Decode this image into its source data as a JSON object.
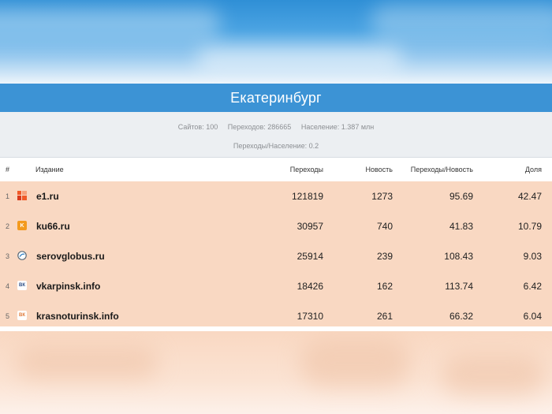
{
  "header": {
    "city": "Екатеринбург"
  },
  "stats": {
    "sites": "Сайтов: 100",
    "transitions": "Переходов: 286665",
    "population": "Население: 1.387 млн",
    "ratio": "Переходы/Население: 0.2"
  },
  "table": {
    "columns": [
      "#",
      "Издание",
      "Переходы",
      "Новость",
      "Переходы/Новость",
      "Доля"
    ],
    "rows": [
      {
        "rank": "1",
        "site": "e1.ru",
        "icon": "e1-icon",
        "transitions": "121819",
        "news": "1273",
        "per_news": "95.69",
        "share": "42.47"
      },
      {
        "rank": "2",
        "site": "ku66.ru",
        "icon": "ku66-icon",
        "transitions": "30957",
        "news": "740",
        "per_news": "41.83",
        "share": "10.79"
      },
      {
        "rank": "3",
        "site": "serovglobus.ru",
        "icon": "serovglobus-icon",
        "transitions": "25914",
        "news": "239",
        "per_news": "108.43",
        "share": "9.03"
      },
      {
        "rank": "4",
        "site": "vkarpinsk.info",
        "icon": "vk-icon",
        "transitions": "18426",
        "news": "162",
        "per_news": "113.74",
        "share": "6.42"
      },
      {
        "rank": "5",
        "site": "krasnoturinsk.info",
        "icon": "vk-icon",
        "transitions": "17310",
        "news": "261",
        "per_news": "66.32",
        "share": "6.04"
      }
    ]
  },
  "colors": {
    "city_bar": "#3c93d5",
    "stats_bg": "#eceff2",
    "rows_bg": "#f9d8c2"
  }
}
